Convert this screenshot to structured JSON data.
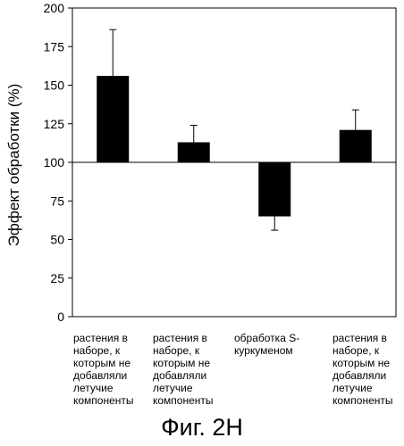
{
  "chart_data": {
    "type": "bar",
    "ylabel": "Эффект обработки (%)",
    "ylim": [
      0,
      200
    ],
    "yticks": [
      0,
      25,
      50,
      75,
      100,
      125,
      150,
      175,
      200
    ],
    "baseline": 100,
    "grid": false,
    "categories": [
      "растения в наборе, к которым не добавляли летучие компоненты",
      "растения в наборе, к которым не добавляли летучие компоненты",
      "обработка S-куркуменом",
      "растения в наборе, к которым не добавляли летучие компоненты"
    ],
    "values": [
      156,
      113,
      65,
      121
    ],
    "errors": [
      30,
      11,
      9,
      13
    ],
    "bar_color": "#000000"
  },
  "caption": "Фиг. 2Н"
}
